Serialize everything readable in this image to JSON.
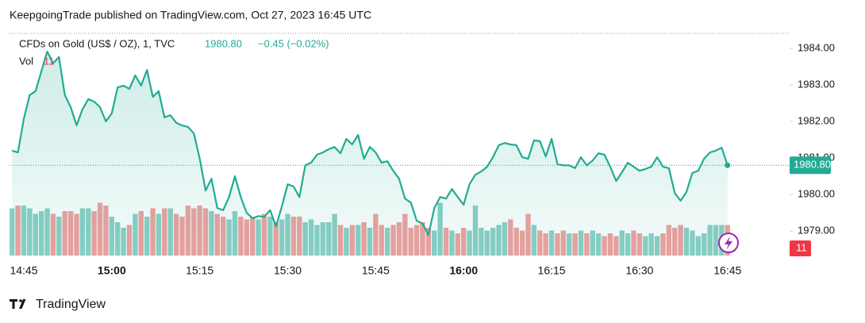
{
  "header": "KeepgoingTrade published on TradingView.com, Oct 27, 2023 16:45 UTC",
  "footer": "TradingView",
  "chart_data": {
    "type": "area",
    "symbol": "CFDs on Gold (US$ / OZ), 1, TVC",
    "last_price": {
      "value": 1980.8,
      "label": "1980.80"
    },
    "change_label": "−0.45 (−0.02%)",
    "volume_name": "Vol",
    "color": "#22ab94",
    "up_color": "#8bcfc5",
    "down_color": "#f0a09f",
    "categories": [
      "14:43",
      "14:44",
      "14:45",
      "14:46",
      "14:47",
      "14:48",
      "14:49",
      "14:50",
      "14:51",
      "14:52",
      "14:53",
      "14:54",
      "14:55",
      "14:56",
      "14:57",
      "14:58",
      "14:59",
      "15:00",
      "15:01",
      "15:02",
      "15:03",
      "15:04",
      "15:05",
      "15:06",
      "15:07",
      "15:08",
      "15:09",
      "15:10",
      "15:11",
      "15:12",
      "15:13",
      "15:14",
      "15:15",
      "15:16",
      "15:17",
      "15:18",
      "15:19",
      "15:20",
      "15:21",
      "15:22",
      "15:23",
      "15:24",
      "15:25",
      "15:26",
      "15:27",
      "15:28",
      "15:29",
      "15:30",
      "15:31",
      "15:32",
      "15:33",
      "15:34",
      "15:35",
      "15:36",
      "15:37",
      "15:38",
      "15:39",
      "15:40",
      "15:41",
      "15:42",
      "15:43",
      "15:44",
      "15:45",
      "15:46",
      "15:47",
      "15:48",
      "15:49",
      "15:50",
      "15:51",
      "15:52",
      "15:53",
      "15:54",
      "15:55",
      "15:56",
      "15:57",
      "15:58",
      "15:59",
      "16:00",
      "16:01",
      "16:02",
      "16:03",
      "16:04",
      "16:05",
      "16:06",
      "16:07",
      "16:08",
      "16:09",
      "16:10",
      "16:11",
      "16:12",
      "16:13",
      "16:14",
      "16:15",
      "16:16",
      "16:17",
      "16:18",
      "16:19",
      "16:20",
      "16:21",
      "16:22",
      "16:23",
      "16:24",
      "16:25",
      "16:26",
      "16:27",
      "16:28",
      "16:29",
      "16:30",
      "16:31",
      "16:32",
      "16:33",
      "16:34",
      "16:35",
      "16:36",
      "16:37",
      "16:38",
      "16:39",
      "16:40",
      "16:41",
      "16:42",
      "16:43",
      "16:44",
      "16:45"
    ],
    "series": [
      {
        "name": "Price",
        "values": [
          1981.2,
          1981.15,
          1982.07,
          1982.72,
          1982.83,
          1983.37,
          1983.91,
          1983.59,
          1983.76,
          1982.72,
          1982.39,
          1981.89,
          1982.33,
          1982.61,
          1982.54,
          1982.39,
          1982.0,
          1982.22,
          1982.93,
          1982.98,
          1982.89,
          1983.26,
          1982.98,
          1983.41,
          1982.67,
          1982.83,
          1982.11,
          1982.17,
          1981.96,
          1981.89,
          1981.85,
          1981.67,
          1980.98,
          1980.11,
          1980.43,
          1979.63,
          1979.57,
          1979.93,
          1980.5,
          1979.93,
          1979.5,
          1979.35,
          1979.41,
          1979.39,
          1979.57,
          1979.13,
          1979.67,
          1980.28,
          1980.22,
          1979.93,
          1980.8,
          1980.87,
          1981.09,
          1981.15,
          1981.24,
          1981.3,
          1981.13,
          1981.52,
          1981.37,
          1981.63,
          1980.98,
          1981.3,
          1981.15,
          1980.87,
          1980.91,
          1980.65,
          1980.43,
          1979.89,
          1979.78,
          1979.28,
          1979.2,
          1978.89,
          1979.63,
          1979.93,
          1979.89,
          1980.15,
          1979.93,
          1979.72,
          1980.28,
          1980.54,
          1980.63,
          1980.76,
          1981.02,
          1981.35,
          1981.41,
          1981.37,
          1981.35,
          1981.02,
          1980.98,
          1981.48,
          1981.46,
          1981.04,
          1981.52,
          1980.83,
          1980.8,
          1980.8,
          1980.72,
          1981.02,
          1980.8,
          1980.93,
          1981.13,
          1981.09,
          1980.76,
          1980.37,
          1980.61,
          1980.87,
          1980.76,
          1980.65,
          1980.7,
          1980.76,
          1981.02,
          1980.76,
          1980.72,
          1980.04,
          1979.83,
          1980.07,
          1980.59,
          1980.65,
          1980.98,
          1981.15,
          1981.2,
          1981.28,
          1980.8
        ]
      }
    ],
    "volume": {
      "name": "Vol",
      "values": [
        17,
        18,
        18,
        17,
        15,
        16,
        17,
        15,
        14,
        16,
        16,
        15,
        17,
        17,
        16,
        19,
        18,
        14,
        12,
        10,
        11,
        15,
        16,
        14,
        17,
        15,
        17,
        17,
        15,
        14,
        18,
        17,
        18,
        17,
        16,
        15,
        14,
        13,
        16,
        14,
        13,
        14,
        13,
        15,
        14,
        12,
        13,
        15,
        14,
        14,
        12,
        13,
        11,
        12,
        12,
        15,
        11,
        10,
        11,
        11,
        12,
        10,
        15,
        11,
        10,
        11,
        12,
        15,
        10,
        11,
        12,
        10,
        9,
        19,
        10,
        9,
        8,
        10,
        9,
        18,
        10,
        9,
        10,
        11,
        12,
        13,
        10,
        9,
        15,
        11,
        9,
        8,
        9,
        8,
        9,
        8,
        8,
        9,
        8,
        9,
        8,
        7,
        8,
        7,
        9,
        8,
        9,
        8,
        7,
        8,
        7,
        8,
        11,
        10,
        11,
        10,
        9,
        7,
        8,
        11,
        11,
        11,
        11
      ]
    },
    "ylim": [
      1978.33,
      1984.41
    ],
    "yticks": [
      {
        "value": 1979,
        "label": "1979.00"
      },
      {
        "value": 1980,
        "label": "1980.00"
      },
      {
        "value": 1981,
        "label": "1981.00"
      },
      {
        "value": 1982,
        "label": "1982.00"
      },
      {
        "value": 1983,
        "label": "1983.00"
      },
      {
        "value": 1984,
        "label": "1984.00"
      }
    ],
    "xticks": [
      "14:45",
      "15:00",
      "15:15",
      "15:30",
      "15:45",
      "16:00",
      "16:15",
      "16:30",
      "16:45"
    ]
  }
}
